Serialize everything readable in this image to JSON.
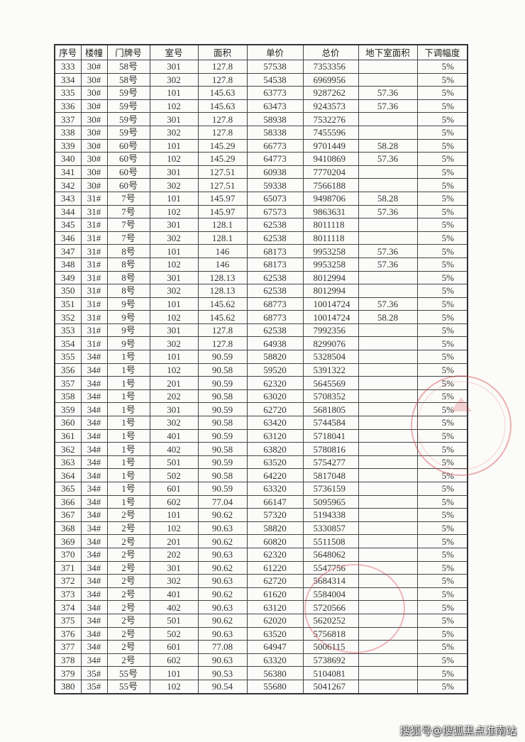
{
  "table": {
    "headers": [
      "序号",
      "楼幢",
      "门牌号",
      "室号",
      "面积",
      "单价",
      "总价",
      "地下室面积",
      "下调幅度"
    ],
    "rows": [
      [
        "333",
        "30#",
        "58号",
        "301",
        "127.8",
        "57538",
        "7353356",
        "",
        "5%"
      ],
      [
        "334",
        "30#",
        "58号",
        "302",
        "127.8",
        "54538",
        "6969956",
        "",
        "5%"
      ],
      [
        "335",
        "30#",
        "59号",
        "101",
        "145.63",
        "63773",
        "9287262",
        "57.36",
        "5%"
      ],
      [
        "336",
        "30#",
        "59号",
        "102",
        "145.63",
        "63473",
        "9243573",
        "57.36",
        "5%"
      ],
      [
        "337",
        "30#",
        "59号",
        "301",
        "127.8",
        "58938",
        "7532276",
        "",
        "5%"
      ],
      [
        "338",
        "30#",
        "59号",
        "302",
        "127.8",
        "58338",
        "7455596",
        "",
        "5%"
      ],
      [
        "339",
        "30#",
        "60号",
        "101",
        "145.29",
        "66773",
        "9701449",
        "58.28",
        "5%"
      ],
      [
        "340",
        "30#",
        "60号",
        "102",
        "145.29",
        "64773",
        "9410869",
        "57.36",
        "5%"
      ],
      [
        "341",
        "30#",
        "60号",
        "301",
        "127.51",
        "60938",
        "7770204",
        "",
        "5%"
      ],
      [
        "342",
        "30#",
        "60号",
        "302",
        "127.51",
        "59338",
        "7566188",
        "",
        "5%"
      ],
      [
        "343",
        "31#",
        "7号",
        "101",
        "145.97",
        "65073",
        "9498706",
        "58.28",
        "5%"
      ],
      [
        "344",
        "31#",
        "7号",
        "102",
        "145.97",
        "67573",
        "9863631",
        "57.36",
        "5%"
      ],
      [
        "345",
        "31#",
        "7号",
        "301",
        "128.1",
        "62538",
        "8011118",
        "",
        "5%"
      ],
      [
        "346",
        "31#",
        "7号",
        "302",
        "128.1",
        "62538",
        "8011118",
        "",
        "5%"
      ],
      [
        "347",
        "31#",
        "8号",
        "101",
        "146",
        "68173",
        "9953258",
        "57.36",
        "5%"
      ],
      [
        "348",
        "31#",
        "8号",
        "102",
        "146",
        "68173",
        "9953258",
        "57.36",
        "5%"
      ],
      [
        "349",
        "31#",
        "8号",
        "301",
        "128.13",
        "62538",
        "8012994",
        "",
        "5%"
      ],
      [
        "350",
        "31#",
        "8号",
        "302",
        "128.13",
        "62538",
        "8012994",
        "",
        "5%"
      ],
      [
        "351",
        "31#",
        "9号",
        "101",
        "145.62",
        "68773",
        "10014724",
        "57.36",
        "5%"
      ],
      [
        "352",
        "31#",
        "9号",
        "102",
        "145.62",
        "68773",
        "10014724",
        "58.28",
        "5%"
      ],
      [
        "353",
        "31#",
        "9号",
        "301",
        "127.8",
        "62538",
        "7992356",
        "",
        "5%"
      ],
      [
        "354",
        "31#",
        "9号",
        "302",
        "127.8",
        "64938",
        "8299076",
        "",
        "5%"
      ],
      [
        "355",
        "34#",
        "1号",
        "101",
        "90.59",
        "58820",
        "5328504",
        "",
        "5%"
      ],
      [
        "356",
        "34#",
        "1号",
        "102",
        "90.58",
        "59520",
        "5391322",
        "",
        "5%"
      ],
      [
        "357",
        "34#",
        "1号",
        "201",
        "90.59",
        "62320",
        "5645569",
        "",
        "5%"
      ],
      [
        "358",
        "34#",
        "1号",
        "202",
        "90.58",
        "63020",
        "5708352",
        "",
        "5%"
      ],
      [
        "359",
        "34#",
        "1号",
        "301",
        "90.59",
        "62720",
        "5681805",
        "",
        "5%"
      ],
      [
        "360",
        "34#",
        "1号",
        "302",
        "90.58",
        "63420",
        "5744584",
        "",
        "5%"
      ],
      [
        "361",
        "34#",
        "1号",
        "401",
        "90.59",
        "63120",
        "5718041",
        "",
        "5%"
      ],
      [
        "362",
        "34#",
        "1号",
        "402",
        "90.58",
        "63820",
        "5780816",
        "",
        "5%"
      ],
      [
        "363",
        "34#",
        "1号",
        "501",
        "90.59",
        "63520",
        "5754277",
        "",
        "5%"
      ],
      [
        "364",
        "34#",
        "1号",
        "502",
        "90.58",
        "64220",
        "5817048",
        "",
        "5%"
      ],
      [
        "365",
        "34#",
        "1号",
        "601",
        "90.59",
        "63320",
        "5736159",
        "",
        "5%"
      ],
      [
        "366",
        "34#",
        "1号",
        "602",
        "77.04",
        "66147",
        "5095965",
        "",
        "5%"
      ],
      [
        "367",
        "34#",
        "2号",
        "101",
        "90.62",
        "57320",
        "5194338",
        "",
        "5%"
      ],
      [
        "368",
        "34#",
        "2号",
        "102",
        "90.63",
        "58820",
        "5330857",
        "",
        "5%"
      ],
      [
        "369",
        "34#",
        "2号",
        "201",
        "90.62",
        "60820",
        "5511508",
        "",
        "5%"
      ],
      [
        "370",
        "34#",
        "2号",
        "202",
        "90.63",
        "62320",
        "5648062",
        "",
        "5%"
      ],
      [
        "371",
        "34#",
        "2号",
        "301",
        "90.62",
        "61220",
        "5547756",
        "",
        "5%"
      ],
      [
        "372",
        "34#",
        "2号",
        "302",
        "90.63",
        "62720",
        "5684314",
        "",
        "5%"
      ],
      [
        "373",
        "34#",
        "2号",
        "401",
        "90.62",
        "61620",
        "5584004",
        "",
        "5%"
      ],
      [
        "374",
        "34#",
        "2号",
        "402",
        "90.63",
        "63120",
        "5720566",
        "",
        "5%"
      ],
      [
        "375",
        "34#",
        "2号",
        "501",
        "90.62",
        "62020",
        "5620252",
        "",
        "5%"
      ],
      [
        "376",
        "34#",
        "2号",
        "502",
        "90.63",
        "63520",
        "5756818",
        "",
        "5%"
      ],
      [
        "377",
        "34#",
        "2号",
        "601",
        "77.08",
        "64947",
        "5006115",
        "",
        "5%"
      ],
      [
        "378",
        "34#",
        "2号",
        "602",
        "90.63",
        "63320",
        "5738692",
        "",
        "5%"
      ],
      [
        "379",
        "35#",
        "55号",
        "101",
        "90.53",
        "56380",
        "5104081",
        "",
        "5%"
      ],
      [
        "380",
        "35#",
        "55号",
        "102",
        "90.54",
        "55680",
        "5041267",
        "",
        "5%"
      ]
    ]
  },
  "stamp_color": "#d9535a",
  "watermark": "搜狐号@搜狐黑点淮南站"
}
